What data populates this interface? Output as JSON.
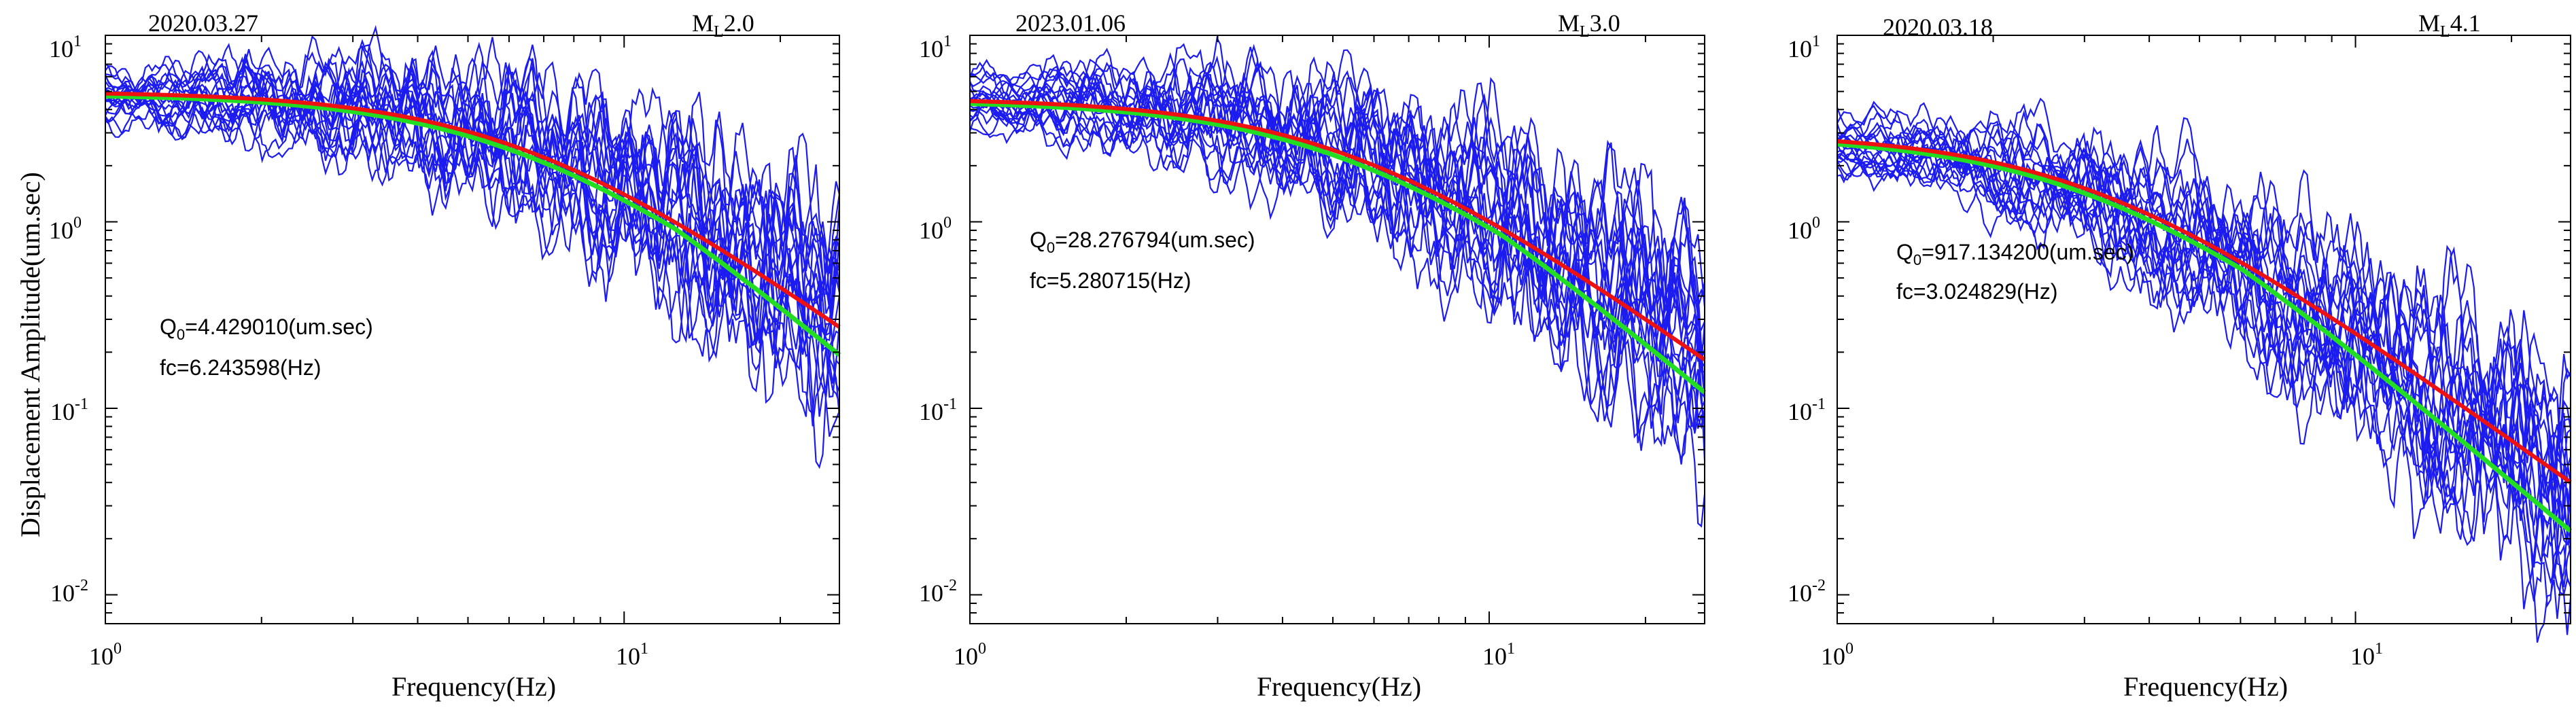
{
  "figure": {
    "ylabel": "Displacement Amplitude(um.sec)",
    "xlabel": "Frequency(Hz)"
  },
  "colors": {
    "observed": "#1c1cf0",
    "model_fit": "#ee1111",
    "smoothed_fit": "#22dd22",
    "axis": "#000000"
  },
  "chart_data": [
    {
      "type": "line",
      "date": "2020.03.27",
      "magnitude": "2.0",
      "magnitude_prefix": "M",
      "magnitude_sub": "L",
      "xlabel": "Frequency(Hz)",
      "ylabel": "Displacement Amplitude(um.sec)",
      "xscale": "log",
      "yscale": "log",
      "xlim": [
        1,
        26
      ],
      "ylim": [
        0.007,
        10
      ],
      "x_ticks": [
        {
          "base": "10",
          "exp": "0"
        },
        {
          "base": "10",
          "exp": "1"
        }
      ],
      "y_ticks": [
        {
          "base": "10",
          "exp": "1"
        },
        {
          "base": "10",
          "exp": "0"
        },
        {
          "base": "10",
          "exp": "-1"
        },
        {
          "base": "10",
          "exp": "-2"
        }
      ],
      "annotation": {
        "q_label": "Q",
        "q_sub": "0",
        "q_value": "=4.429010(um.sec)",
        "fc_text": "fc=6.243598(Hz)"
      },
      "omega0": 5.0,
      "fc": 6.243598,
      "n_observed": 20,
      "series": [
        {
          "name": "observed spectra (20 stations)",
          "color": "blue",
          "description": "individual station displacement spectra"
        },
        {
          "name": "Brune model fit",
          "color": "red",
          "omega0": 5.0,
          "fc": 6.243598
        },
        {
          "name": "smoothed mean spectrum",
          "color": "green"
        }
      ]
    },
    {
      "type": "line",
      "date": "2023.01.06",
      "magnitude": "3.0",
      "magnitude_prefix": "M",
      "magnitude_sub": "L",
      "xlabel": "Frequency(Hz)",
      "xscale": "log",
      "yscale": "log",
      "xlim": [
        1,
        26
      ],
      "ylim": [
        0.007,
        10
      ],
      "x_ticks": [
        {
          "base": "10",
          "exp": "0"
        },
        {
          "base": "10",
          "exp": "1"
        }
      ],
      "y_ticks": [
        {
          "base": "10",
          "exp": "1"
        },
        {
          "base": "10",
          "exp": "0"
        },
        {
          "base": "10",
          "exp": "-1"
        },
        {
          "base": "10",
          "exp": "-2"
        }
      ],
      "annotation": {
        "q_label": "Q",
        "q_sub": "0",
        "q_value": "=28.276794(um.sec)",
        "fc_text": "fc=5.280715(Hz)"
      },
      "omega0": 4.6,
      "fc": 5.280715,
      "n_observed": 20,
      "series": [
        {
          "name": "observed spectra (20 stations)",
          "color": "blue"
        },
        {
          "name": "Brune model fit",
          "color": "red",
          "omega0": 4.6,
          "fc": 5.280715
        },
        {
          "name": "smoothed mean spectrum",
          "color": "green"
        }
      ]
    },
    {
      "type": "line",
      "date": "2020.03.18",
      "magnitude": "4.1",
      "magnitude_prefix": "M",
      "magnitude_sub": "L",
      "xlabel": "Frequency(Hz)",
      "xscale": "log",
      "yscale": "log",
      "xlim": [
        1,
        26
      ],
      "ylim": [
        0.007,
        10
      ],
      "x_ticks": [
        {
          "base": "10",
          "exp": "0"
        },
        {
          "base": "10",
          "exp": "1"
        }
      ],
      "y_ticks": [
        {
          "base": "10",
          "exp": "1"
        },
        {
          "base": "10",
          "exp": "0"
        },
        {
          "base": "10",
          "exp": "-1"
        },
        {
          "base": "10",
          "exp": "-2"
        }
      ],
      "annotation": {
        "q_label": "Q",
        "q_sub": "0",
        "q_value": "=917.134200(um.sec)",
        "fc_text": "fc=3.024829(Hz)"
      },
      "omega0": 3.0,
      "fc": 3.024829,
      "n_observed": 20,
      "series": [
        {
          "name": "observed spectra (20 stations)",
          "color": "blue"
        },
        {
          "name": "Brune model fit",
          "color": "red",
          "omega0": 3.0,
          "fc": 3.024829
        },
        {
          "name": "smoothed mean spectrum",
          "color": "green"
        }
      ]
    }
  ]
}
